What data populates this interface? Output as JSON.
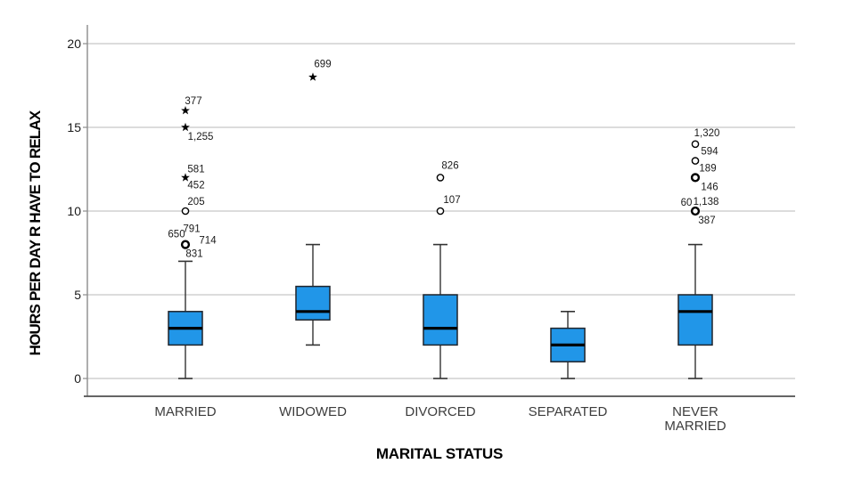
{
  "chart_data": {
    "type": "boxplot",
    "title": "",
    "xlabel": "MARITAL STATUS",
    "ylabel": "HOURS PER DAY R HAVE TO RELAX",
    "ylim": [
      0,
      21
    ],
    "yticks": [
      0,
      5,
      10,
      15,
      20
    ],
    "grid": "horizontal",
    "legend": "none",
    "colors": {
      "box_fill": "#2196e8",
      "box_border": "#1f242b",
      "median": "#000000",
      "whisker": "#333333",
      "marker": "#000000",
      "gridline": "#c8c8c8",
      "axis_line": "#8c8c8c",
      "frame_line": "#4f4f4f",
      "text": "#1a1a1a"
    },
    "categories": [
      "MARRIED",
      "WIDOWED",
      "DIVORCED",
      "SEPARATED",
      "NEVER MARRIED"
    ],
    "category_label_lines": [
      [
        "MARRIED"
      ],
      [
        "WIDOWED"
      ],
      [
        "DIVORCED"
      ],
      [
        "SEPARATED"
      ],
      [
        "NEVER",
        "MARRIED"
      ]
    ],
    "boxes": [
      {
        "category": "MARRIED",
        "whisker_low": 0,
        "q1": 2,
        "median": 3,
        "q3": 4,
        "whisker_high": 7,
        "outliers": [
          {
            "value": 16,
            "marker": "star",
            "labels": [
              {
                "text": "377",
                "dx": 9,
                "dy": -11
              }
            ]
          },
          {
            "value": 15,
            "marker": "star",
            "labels": [
              {
                "text": "1,255",
                "dx": 17,
                "dy": 10
              }
            ]
          },
          {
            "value": 12,
            "marker": "star",
            "labels": [
              {
                "text": "581",
                "dx": 12,
                "dy": -10
              },
              {
                "text": "452",
                "dx": 12,
                "dy": 8
              }
            ]
          },
          {
            "value": 10,
            "marker": "circle",
            "labels": [
              {
                "text": "205",
                "dx": 12,
                "dy": -11
              }
            ]
          },
          {
            "value": 8,
            "marker": "circle-bold",
            "labels": [
              {
                "text": "650",
                "dx": -10,
                "dy": -12
              },
              {
                "text": "791",
                "dx": 7,
                "dy": -18
              },
              {
                "text": "714",
                "dx": 25,
                "dy": -5
              },
              {
                "text": "831",
                "dx": 10,
                "dy": 10
              }
            ]
          }
        ]
      },
      {
        "category": "WIDOWED",
        "whisker_low": 2,
        "q1": 3.5,
        "median": 4,
        "q3": 5.5,
        "whisker_high": 8,
        "outliers": [
          {
            "value": 18,
            "marker": "star",
            "labels": [
              {
                "text": "699",
                "dx": 11,
                "dy": -15
              }
            ]
          }
        ]
      },
      {
        "category": "DIVORCED",
        "whisker_low": 0,
        "q1": 2,
        "median": 3,
        "q3": 5,
        "whisker_high": 8,
        "outliers": [
          {
            "value": 12,
            "marker": "circle",
            "labels": [
              {
                "text": "826",
                "dx": 11,
                "dy": -14
              }
            ]
          },
          {
            "value": 10,
            "marker": "circle",
            "labels": [
              {
                "text": "107",
                "dx": 13,
                "dy": -13
              }
            ]
          }
        ]
      },
      {
        "category": "SEPARATED",
        "whisker_low": 0,
        "q1": 1,
        "median": 2,
        "q3": 3,
        "whisker_high": 4,
        "outliers": []
      },
      {
        "category": "NEVER MARRIED",
        "whisker_low": 0,
        "q1": 2,
        "median": 4,
        "q3": 5,
        "whisker_high": 8,
        "outliers": [
          {
            "value": 14,
            "marker": "circle",
            "labels": [
              {
                "text": "1,320",
                "dx": 13,
                "dy": -13
              }
            ]
          },
          {
            "value": 13,
            "marker": "circle",
            "labels": [
              {
                "text": "594",
                "dx": 16,
                "dy": -11
              }
            ]
          },
          {
            "value": 12,
            "marker": "circle-bold",
            "labels": [
              {
                "text": "189",
                "dx": 14,
                "dy": -11
              },
              {
                "text": "146",
                "dx": 16,
                "dy": 10
              }
            ]
          },
          {
            "value": 10,
            "marker": "circle-bold",
            "labels": [
              {
                "text": "60",
                "dx": -10,
                "dy": -10
              },
              {
                "text": "1,138",
                "dx": 12,
                "dy": -11
              },
              {
                "text": "387",
                "dx": 13,
                "dy": 10
              }
            ]
          }
        ]
      }
    ]
  }
}
